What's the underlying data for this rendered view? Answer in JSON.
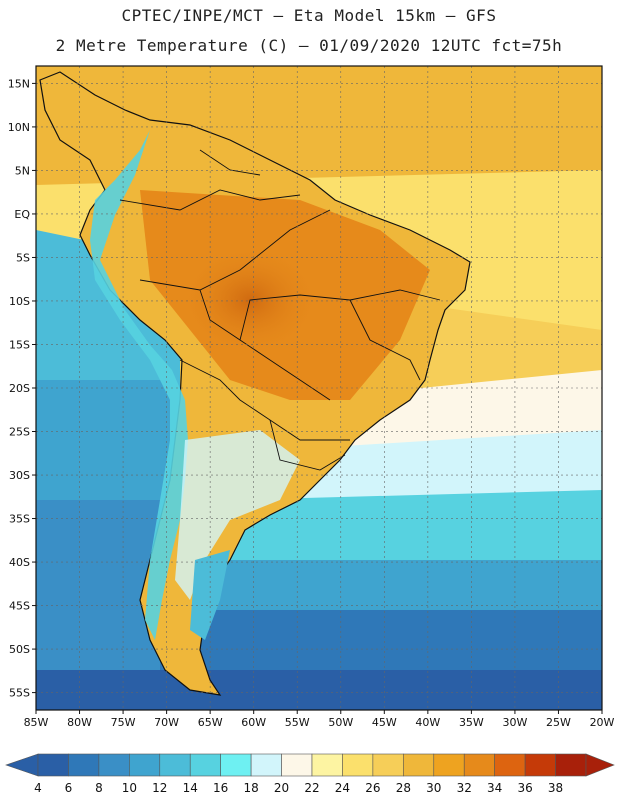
{
  "header": {
    "line1": "CPTEC/INPE/MCT –  Eta Model 15km – GFS",
    "line2": "2 Metre Temperature (C) – 01/09/2020 12UTC fct=75h"
  },
  "map": {
    "lat_labels": [
      "15N",
      "10N",
      "5N",
      "EQ",
      "5S",
      "10S",
      "15S",
      "20S",
      "25S",
      "30S",
      "35S",
      "40S",
      "45S",
      "50S",
      "55S"
    ],
    "lat_values": [
      15,
      10,
      5,
      0,
      -5,
      -10,
      -15,
      -20,
      -25,
      -30,
      -35,
      -40,
      -45,
      -50,
      -55
    ],
    "lon_labels": [
      "85W",
      "80W",
      "75W",
      "70W",
      "65W",
      "60W",
      "55W",
      "50W",
      "45W",
      "40W",
      "35W",
      "30W",
      "25W",
      "20W"
    ],
    "lon_values": [
      -85,
      -80,
      -75,
      -70,
      -65,
      -60,
      -55,
      -50,
      -45,
      -40,
      -35,
      -30,
      -25,
      -20
    ],
    "extent": {
      "lon_min": -85,
      "lon_max": -20,
      "lat_min": -57,
      "lat_max": 17
    }
  },
  "colorbar": {
    "labels": [
      "4",
      "6",
      "8",
      "10",
      "12",
      "14",
      "16",
      "18",
      "20",
      "22",
      "24",
      "26",
      "28",
      "30",
      "32",
      "34",
      "36",
      "38"
    ],
    "colors": [
      "#2a5fa6",
      "#2f78b8",
      "#3a8fc6",
      "#3fa4cf",
      "#4cbcd8",
      "#57d2e0",
      "#6ef0f2",
      "#d2f5fb",
      "#fdf7e8",
      "#fdf4a2",
      "#fbe06c",
      "#f6ce58",
      "#efb73a",
      "#eea320",
      "#e68a1b",
      "#dd6410",
      "#c53a08",
      "#a8200a"
    ],
    "arrow_low": "#2a5fa6",
    "arrow_high": "#a8200a"
  }
}
